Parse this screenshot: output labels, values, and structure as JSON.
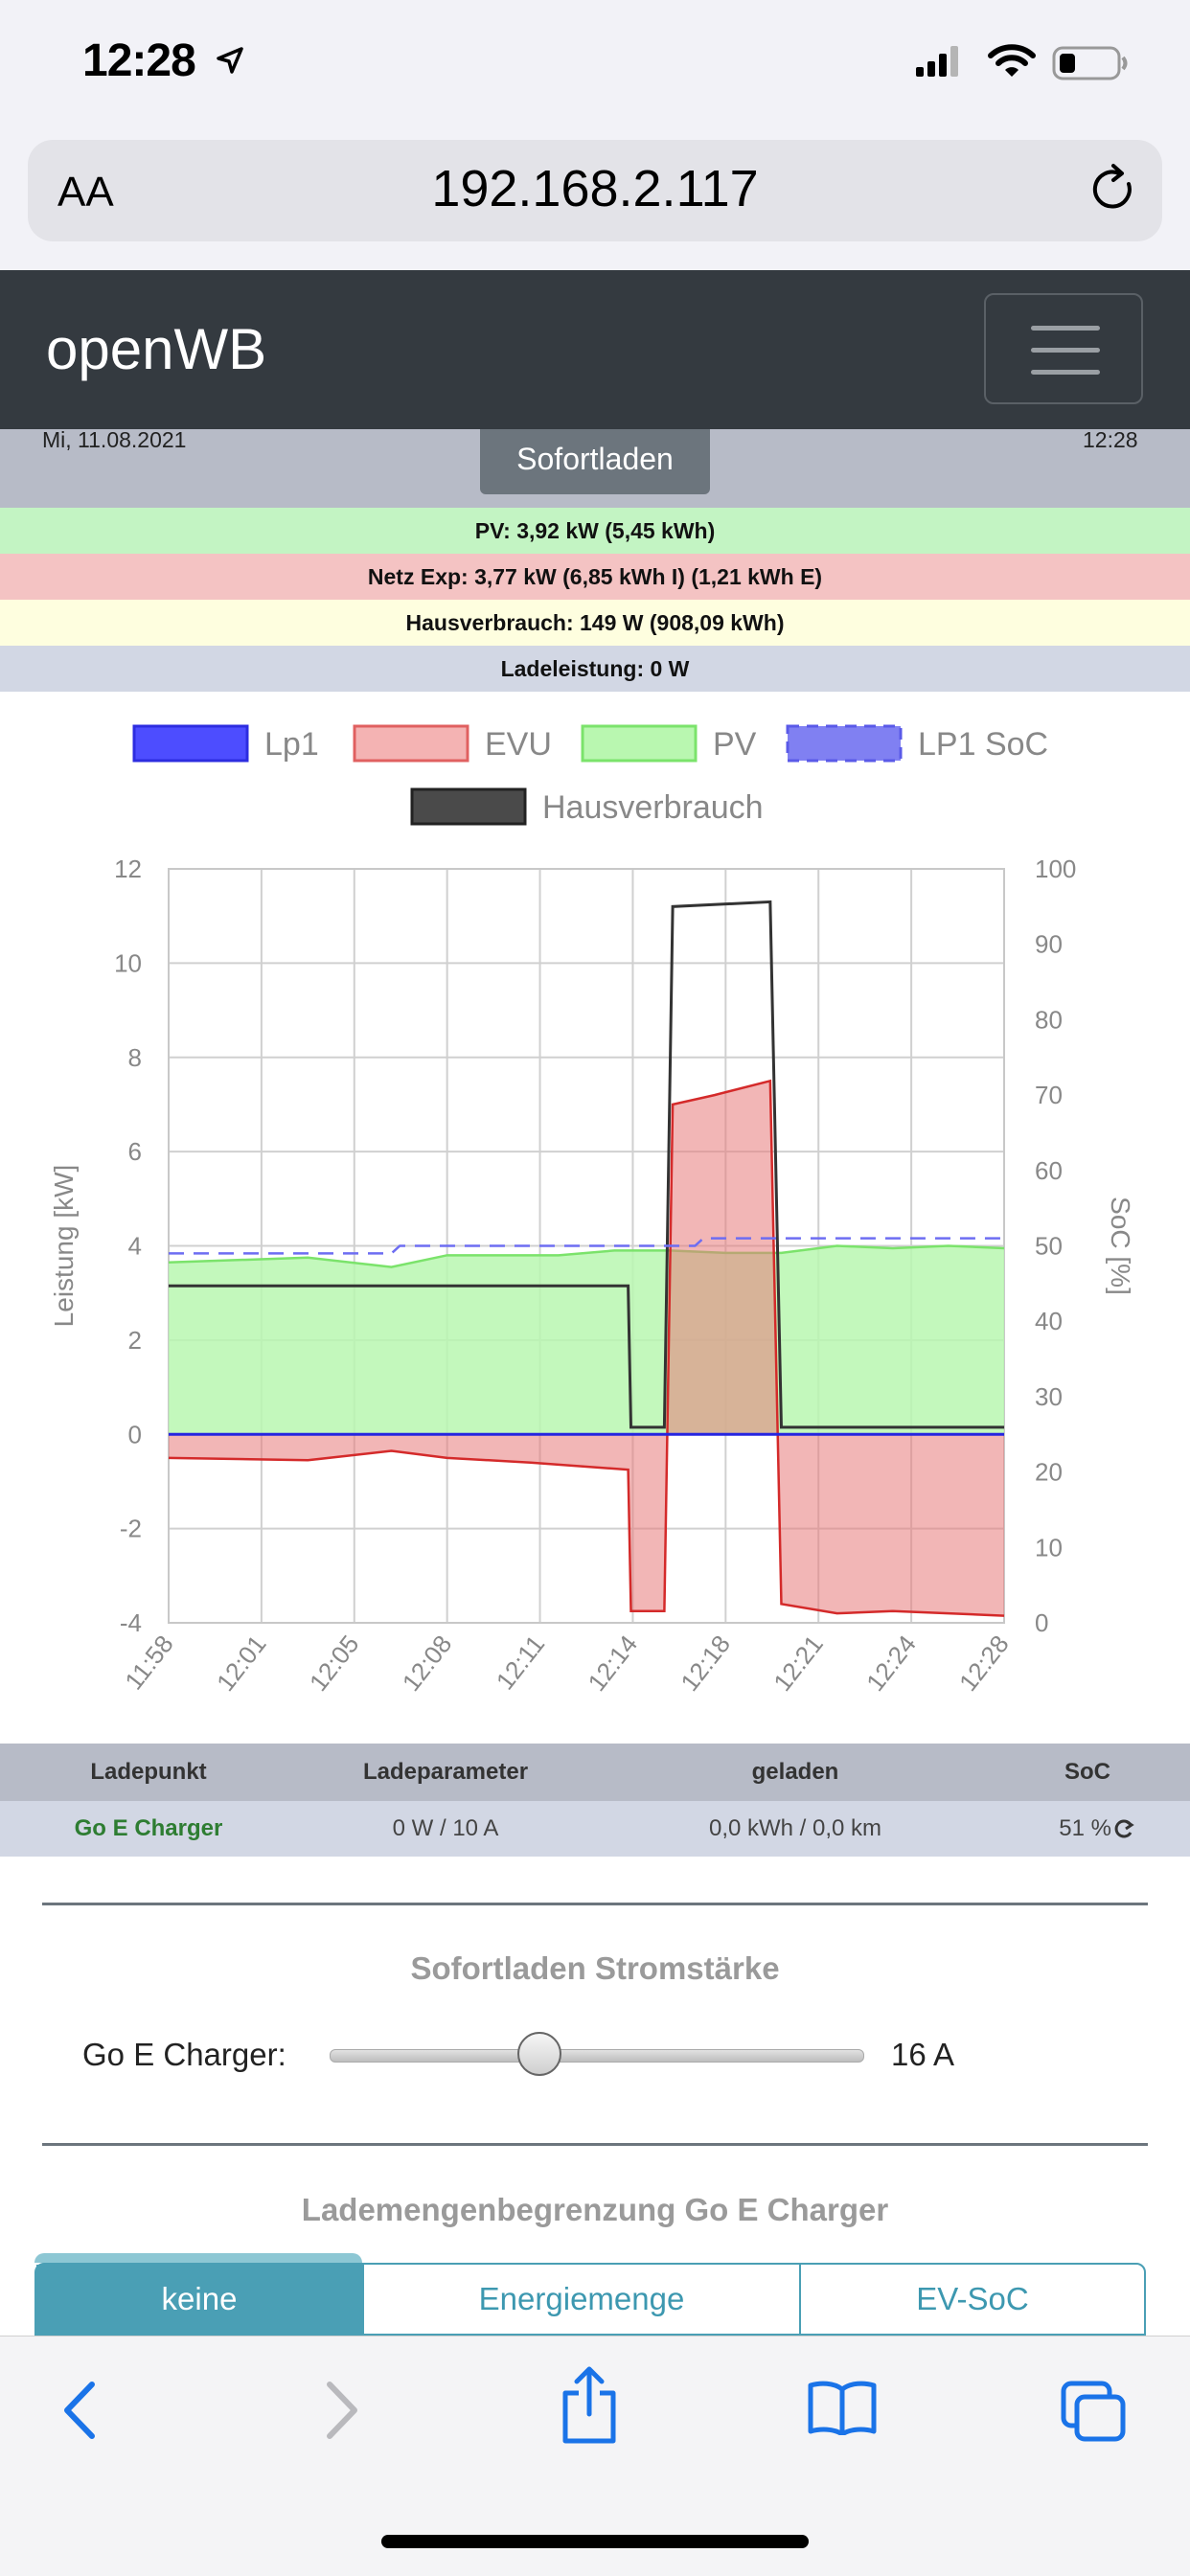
{
  "status": {
    "time": "12:28"
  },
  "browser": {
    "text_size_label": "AA",
    "url": "192.168.2.117"
  },
  "navbar": {
    "brand": "openWB"
  },
  "header": {
    "date": "Mi, 11.08.2021",
    "time": "12:28",
    "mode_button": "Sofortladen"
  },
  "info_rows": {
    "pv": "PV: 3,92 kW (5,45 kWh)",
    "netz": "Netz Exp: 3,77 kW (6,85 kWh I) (1,21 kWh E)",
    "haus": "Hausverbrauch: 149 W (908,09 kWh)",
    "lade": "Ladeleistung: 0 W"
  },
  "colors": {
    "pv_row": "#c3f4c3",
    "netz_row": "#f4c3c3",
    "haus_row": "#fefedf",
    "lade_row": "#d2d7e4",
    "lp1": "#3333ff",
    "evu": "#f4b3b3",
    "pv": "#bff5b6",
    "haus": "#444444",
    "soc": "#7f7ff5",
    "accent": "#4a9fb5"
  },
  "chart_data": {
    "type": "line",
    "legend": [
      "Lp1",
      "EVU",
      "PV",
      "LP1 SoC",
      "Hausverbrauch"
    ],
    "ylabel": "Leistung [kW]",
    "y2label": "SoC [%]",
    "ylim": [
      -4,
      12
    ],
    "y2lim": [
      0,
      100
    ],
    "yticks": [
      12,
      10,
      8,
      6,
      4,
      2,
      0,
      -2,
      -4
    ],
    "y2ticks": [
      100,
      90,
      80,
      70,
      60,
      50,
      40,
      30,
      20,
      10,
      0
    ],
    "x_ticks": [
      "11:58",
      "12:01",
      "12:05",
      "12:08",
      "12:11",
      "12:14",
      "12:18",
      "12:21",
      "12:24",
      "12:28"
    ],
    "x_minutes": [
      0,
      30
    ],
    "series": [
      {
        "name": "PV",
        "points": [
          [
            0,
            3.65
          ],
          [
            5,
            3.75
          ],
          [
            8,
            3.55
          ],
          [
            10,
            3.8
          ],
          [
            14,
            3.8
          ],
          [
            16,
            3.9
          ],
          [
            18,
            3.9
          ],
          [
            20,
            3.85
          ],
          [
            22,
            3.85
          ],
          [
            24,
            4.0
          ],
          [
            26,
            3.95
          ],
          [
            28,
            4.0
          ],
          [
            30,
            3.95
          ]
        ]
      },
      {
        "name": "EVU",
        "points": [
          [
            0,
            -0.5
          ],
          [
            5,
            -0.55
          ],
          [
            8,
            -0.35
          ],
          [
            10,
            -0.5
          ],
          [
            13,
            -0.6
          ],
          [
            16.5,
            -0.75
          ],
          [
            16.6,
            -3.75
          ],
          [
            17.8,
            -3.75
          ],
          [
            18.1,
            7.0
          ],
          [
            19.6,
            7.2
          ],
          [
            21.6,
            7.5
          ],
          [
            22.0,
            -3.6
          ],
          [
            24,
            -3.8
          ],
          [
            26,
            -3.75
          ],
          [
            30,
            -3.85
          ]
        ]
      },
      {
        "name": "Hausverbrauch",
        "points": [
          [
            0,
            3.15
          ],
          [
            5,
            3.15
          ],
          [
            10,
            3.15
          ],
          [
            16.5,
            3.15
          ],
          [
            16.6,
            0.15
          ],
          [
            17.8,
            0.15
          ],
          [
            18.1,
            11.2
          ],
          [
            21.6,
            11.3
          ],
          [
            22.0,
            0.15
          ],
          [
            30,
            0.15
          ]
        ]
      },
      {
        "name": "Lp1",
        "points": [
          [
            0,
            0
          ],
          [
            30,
            0
          ]
        ]
      },
      {
        "name": "LP1 SoC",
        "points": [
          [
            0,
            49
          ],
          [
            8,
            49
          ],
          [
            8.3,
            50
          ],
          [
            18.9,
            50
          ],
          [
            19.2,
            51
          ],
          [
            30,
            51
          ]
        ]
      }
    ],
    "grid": true,
    "legend_position": "top"
  },
  "table": {
    "headers": [
      "Ladepunkt",
      "Ladeparameter",
      "geladen",
      "SoC"
    ],
    "row": {
      "name": "Go E Charger",
      "param": "0 W / 10 A",
      "geladen": "0,0 kWh / 0,0 km",
      "soc": "51 %"
    }
  },
  "sofortladen": {
    "title": "Sofortladen Stromstärke",
    "label": "Go E Charger:",
    "value": "16 A",
    "current_amps": 16,
    "min_amps": 6,
    "max_amps": 32
  },
  "begrenzung": {
    "title": "Lademengenbegrenzung Go E Charger",
    "tabs": [
      "keine",
      "Energiemenge",
      "EV-SoC"
    ],
    "selected": "keine"
  }
}
